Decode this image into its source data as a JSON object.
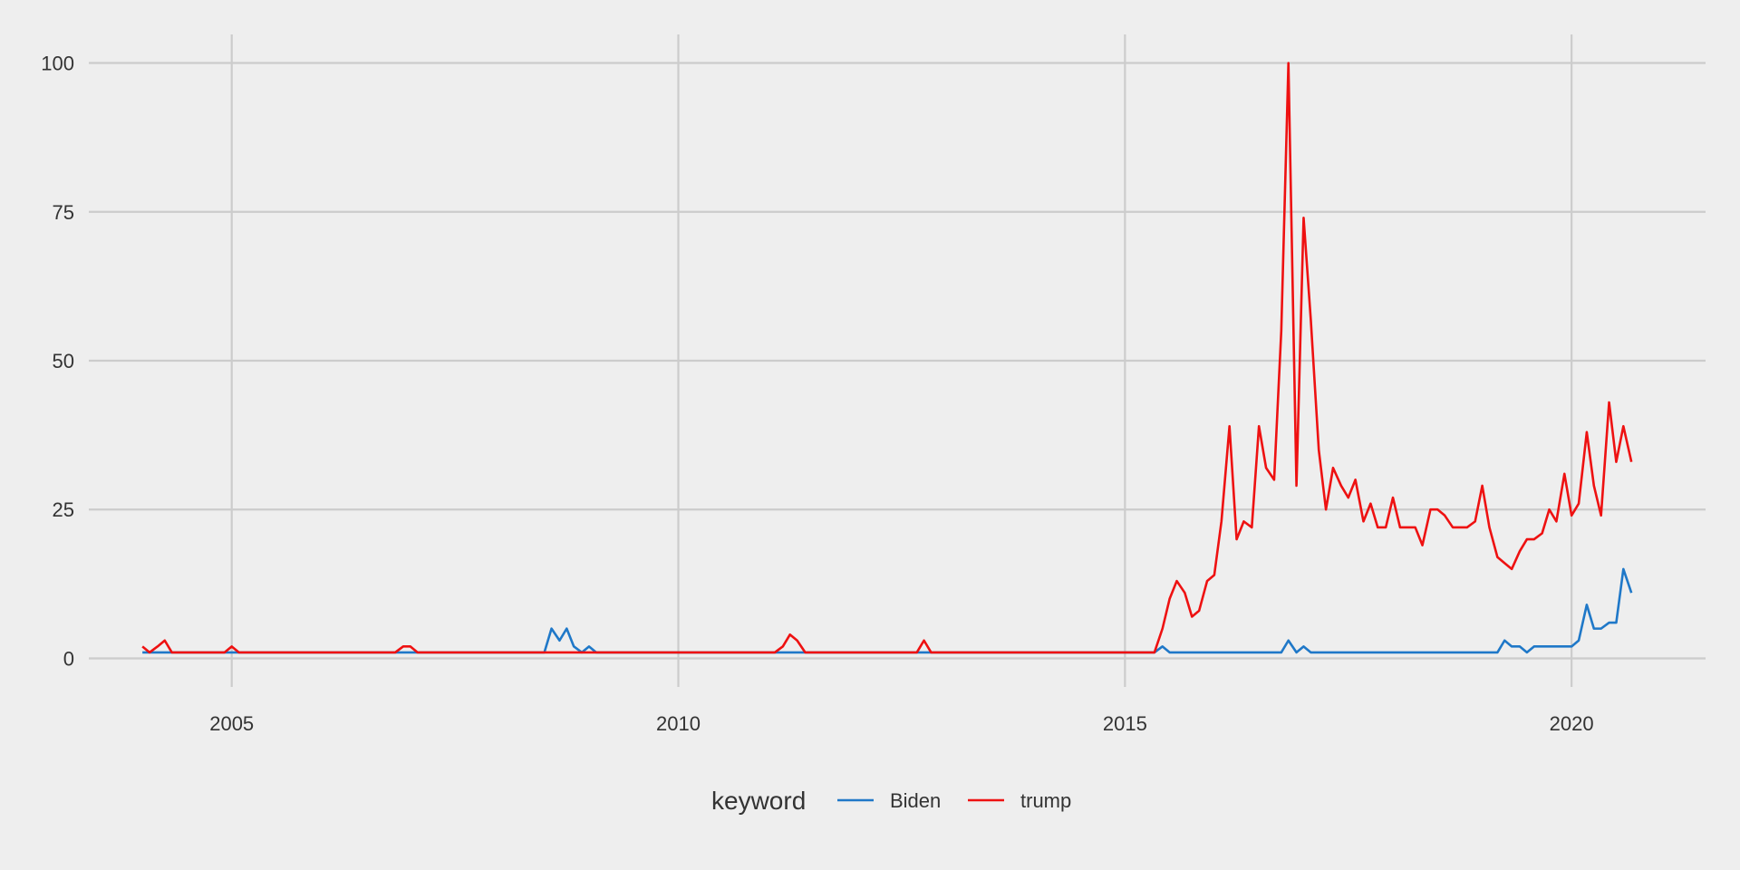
{
  "chart_data": {
    "type": "line",
    "title": "",
    "xlabel": "",
    "ylabel": "",
    "xlim": [
      2003.4,
      2021.5
    ],
    "ylim": [
      -4.8,
      104.8
    ],
    "x_ticks": [
      2005,
      2010,
      2015,
      2020
    ],
    "x_tick_labels": [
      "2005",
      "2010",
      "2015",
      "2020"
    ],
    "y_ticks": [
      0,
      25,
      50,
      75,
      100
    ],
    "y_tick_labels": [
      "0",
      "25",
      "50",
      "75",
      "100"
    ],
    "grid": true,
    "legend": {
      "title": "keyword",
      "position": "bottom"
    },
    "series": [
      {
        "name": "Biden",
        "color": "#1f78c8",
        "points": [
          [
            2004.0,
            1
          ],
          [
            2004.5,
            1
          ],
          [
            2005.0,
            1
          ],
          [
            2006.0,
            1
          ],
          [
            2007.0,
            1
          ],
          [
            2008.0,
            1
          ],
          [
            2008.5,
            1
          ],
          [
            2008.58,
            5
          ],
          [
            2008.67,
            3
          ],
          [
            2008.75,
            5
          ],
          [
            2008.83,
            2
          ],
          [
            2008.92,
            1
          ],
          [
            2009.0,
            2
          ],
          [
            2009.08,
            1
          ],
          [
            2009.5,
            1
          ],
          [
            2010.0,
            1
          ],
          [
            2011.0,
            1
          ],
          [
            2012.0,
            1
          ],
          [
            2013.0,
            1
          ],
          [
            2014.0,
            1
          ],
          [
            2015.0,
            1
          ],
          [
            2015.33,
            1
          ],
          [
            2015.42,
            2
          ],
          [
            2015.5,
            1
          ],
          [
            2016.0,
            1
          ],
          [
            2016.5,
            1
          ],
          [
            2016.75,
            1
          ],
          [
            2016.83,
            3
          ],
          [
            2016.92,
            1
          ],
          [
            2017.0,
            2
          ],
          [
            2017.08,
            1
          ],
          [
            2017.5,
            1
          ],
          [
            2018.0,
            1
          ],
          [
            2018.5,
            1
          ],
          [
            2019.0,
            1
          ],
          [
            2019.17,
            1
          ],
          [
            2019.25,
            3
          ],
          [
            2019.33,
            2
          ],
          [
            2019.42,
            2
          ],
          [
            2019.5,
            1
          ],
          [
            2019.58,
            2
          ],
          [
            2019.75,
            2
          ],
          [
            2019.92,
            2
          ],
          [
            2020.0,
            2
          ],
          [
            2020.08,
            3
          ],
          [
            2020.17,
            9
          ],
          [
            2020.25,
            5
          ],
          [
            2020.33,
            5
          ],
          [
            2020.42,
            6
          ],
          [
            2020.5,
            6
          ],
          [
            2020.58,
            15
          ],
          [
            2020.67,
            11
          ]
        ]
      },
      {
        "name": "trump",
        "color": "#ee1111",
        "points": [
          [
            2004.0,
            2
          ],
          [
            2004.08,
            1
          ],
          [
            2004.17,
            2
          ],
          [
            2004.25,
            3
          ],
          [
            2004.33,
            1
          ],
          [
            2004.5,
            1
          ],
          [
            2004.92,
            1
          ],
          [
            2005.0,
            2
          ],
          [
            2005.08,
            1
          ],
          [
            2006.0,
            1
          ],
          [
            2006.83,
            1
          ],
          [
            2006.92,
            2
          ],
          [
            2007.0,
            2
          ],
          [
            2007.08,
            1
          ],
          [
            2008.0,
            1
          ],
          [
            2009.0,
            1
          ],
          [
            2010.0,
            1
          ],
          [
            2011.08,
            1
          ],
          [
            2011.17,
            2
          ],
          [
            2011.25,
            4
          ],
          [
            2011.33,
            3
          ],
          [
            2011.42,
            1
          ],
          [
            2012.0,
            1
          ],
          [
            2012.67,
            1
          ],
          [
            2012.75,
            3
          ],
          [
            2012.83,
            1
          ],
          [
            2013.0,
            1
          ],
          [
            2014.0,
            1
          ],
          [
            2015.0,
            1
          ],
          [
            2015.33,
            1
          ],
          [
            2015.42,
            5
          ],
          [
            2015.5,
            10
          ],
          [
            2015.58,
            13
          ],
          [
            2015.67,
            11
          ],
          [
            2015.75,
            7
          ],
          [
            2015.83,
            8
          ],
          [
            2015.92,
            13
          ],
          [
            2016.0,
            14
          ],
          [
            2016.08,
            23
          ],
          [
            2016.17,
            39
          ],
          [
            2016.25,
            20
          ],
          [
            2016.33,
            23
          ],
          [
            2016.42,
            22
          ],
          [
            2016.5,
            39
          ],
          [
            2016.58,
            32
          ],
          [
            2016.67,
            30
          ],
          [
            2016.75,
            55
          ],
          [
            2016.83,
            100
          ],
          [
            2016.92,
            29
          ],
          [
            2017.0,
            74
          ],
          [
            2017.08,
            57
          ],
          [
            2017.17,
            35
          ],
          [
            2017.25,
            25
          ],
          [
            2017.33,
            32
          ],
          [
            2017.42,
            29
          ],
          [
            2017.5,
            27
          ],
          [
            2017.58,
            30
          ],
          [
            2017.67,
            23
          ],
          [
            2017.75,
            26
          ],
          [
            2017.83,
            22
          ],
          [
            2017.92,
            22
          ],
          [
            2018.0,
            27
          ],
          [
            2018.08,
            22
          ],
          [
            2018.17,
            22
          ],
          [
            2018.25,
            22
          ],
          [
            2018.33,
            19
          ],
          [
            2018.42,
            25
          ],
          [
            2018.5,
            25
          ],
          [
            2018.58,
            24
          ],
          [
            2018.67,
            22
          ],
          [
            2018.75,
            22
          ],
          [
            2018.83,
            22
          ],
          [
            2018.92,
            23
          ],
          [
            2019.0,
            29
          ],
          [
            2019.08,
            22
          ],
          [
            2019.17,
            17
          ],
          [
            2019.25,
            16
          ],
          [
            2019.33,
            15
          ],
          [
            2019.42,
            18
          ],
          [
            2019.5,
            20
          ],
          [
            2019.58,
            20
          ],
          [
            2019.67,
            21
          ],
          [
            2019.75,
            25
          ],
          [
            2019.83,
            23
          ],
          [
            2019.92,
            31
          ],
          [
            2020.0,
            24
          ],
          [
            2020.08,
            26
          ],
          [
            2020.17,
            38
          ],
          [
            2020.25,
            29
          ],
          [
            2020.33,
            24
          ],
          [
            2020.42,
            43
          ],
          [
            2020.5,
            33
          ],
          [
            2020.58,
            39
          ],
          [
            2020.67,
            33
          ]
        ]
      }
    ]
  }
}
